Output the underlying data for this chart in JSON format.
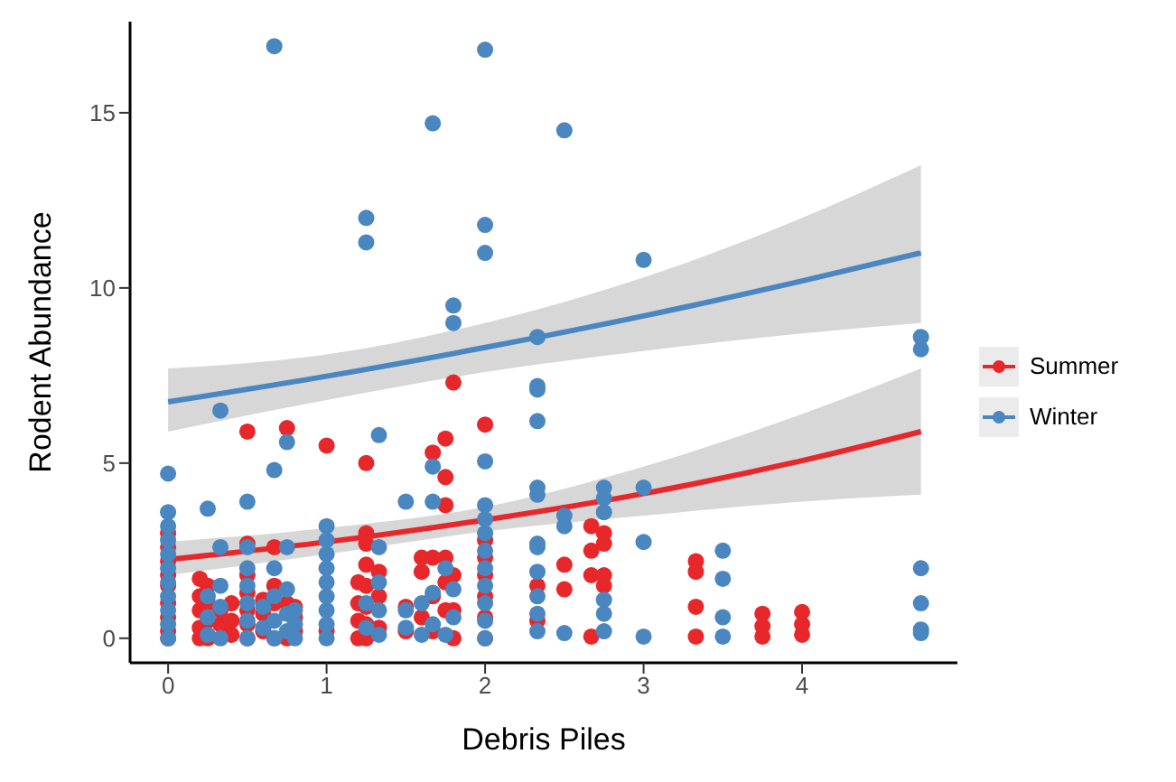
{
  "chart_data": {
    "type": "scatter",
    "xlabel": "Debris Piles",
    "ylabel": "Rodent Abundance",
    "xlim": [
      -0.24,
      4.98
    ],
    "ylim": [
      -0.7,
      17.6
    ],
    "xticks": [
      0,
      1,
      2,
      3,
      4
    ],
    "yticks": [
      0,
      5,
      10,
      15
    ],
    "grid": false,
    "legend": "right",
    "marker": "circle",
    "series": [
      {
        "name": "Summer",
        "color": "#e8272b",
        "x": [
          0,
          0,
          0,
          0,
          0,
          0,
          0,
          0,
          0,
          0.2,
          0.2,
          0.2,
          0.2,
          0.2,
          0.25,
          0.25,
          0.25,
          0.25,
          0.33,
          0.33,
          0.4,
          0.4,
          0.4,
          0.5,
          0.5,
          0.5,
          0.5,
          0.5,
          0.5,
          0.5,
          0.6,
          0.6,
          0.6,
          0.67,
          0.67,
          0.67,
          0.67,
          0.75,
          0.75,
          0.75,
          0.8,
          0.8,
          0.8,
          1,
          1,
          1.2,
          1.2,
          1.2,
          1.2,
          1.25,
          1.25,
          1.25,
          1.25,
          1.25,
          1.25,
          1.25,
          1.25,
          1.33,
          1.33,
          1.33,
          1.5,
          1.5,
          1.6,
          1.6,
          1.6,
          1.67,
          1.67,
          1.67,
          1.67,
          1.75,
          1.75,
          1.75,
          1.75,
          1.75,
          1.75,
          1.8,
          1.8,
          1.8,
          1.8,
          2,
          2,
          2,
          2,
          2,
          2,
          2,
          2.33,
          2.33,
          2.5,
          2.5,
          2.67,
          2.67,
          2.67,
          2.67,
          2.75,
          2.75,
          2.75,
          2.75,
          3.33,
          3.33,
          3.33,
          3.33,
          3.75,
          3.75,
          3.75,
          4,
          4,
          4
        ],
        "values": [
          0,
          0.2,
          0.6,
          1,
          1.5,
          1.8,
          2.2,
          2.6,
          3,
          0,
          0.3,
          0.8,
          1.2,
          1.7,
          0,
          0.5,
          1,
          1.5,
          0.4,
          0.8,
          0.1,
          0.5,
          1,
          0,
          0.4,
          0.8,
          1.3,
          1.8,
          2.7,
          5.9,
          0.2,
          0.7,
          1.1,
          0,
          1,
          1.5,
          2.6,
          0,
          1,
          6,
          0.2,
          0.6,
          0.9,
          0.2,
          5.5,
          0,
          0.5,
          1,
          1.6,
          0,
          0.4,
          0.9,
          1.5,
          2.1,
          2.7,
          3,
          5,
          0.3,
          1.2,
          1.9,
          0.2,
          0.9,
          0.6,
          1.9,
          2.3,
          0.2,
          1.2,
          2.3,
          5.3,
          0.8,
          1.6,
          2.3,
          3.8,
          4.6,
          5.7,
          0,
          0.8,
          1.8,
          7.3,
          0,
          0.6,
          1.2,
          1.8,
          2.3,
          2.8,
          6.1,
          0.5,
          1.5,
          1.4,
          2.1,
          0.05,
          1.8,
          2.5,
          3.2,
          1.5,
          1.8,
          2.7,
          3,
          0.05,
          0.9,
          1.9,
          2.2,
          0.05,
          0.35,
          0.7,
          0.1,
          0.4,
          0.75
        ]
      },
      {
        "name": "Winter",
        "color": "#4a86c0",
        "x": [
          0,
          0,
          0,
          0,
          0,
          0,
          0,
          0,
          0,
          0,
          0,
          0.25,
          0.25,
          0.25,
          0.25,
          0.33,
          0.33,
          0.33,
          0.33,
          0.33,
          0.5,
          0.5,
          0.5,
          0.5,
          0.5,
          0.5,
          0.5,
          0.6,
          0.6,
          0.67,
          0.67,
          0.67,
          0.67,
          0.67,
          0.67,
          0.75,
          0.75,
          0.75,
          0.75,
          0.75,
          0.8,
          0.8,
          0.8,
          1,
          1,
          1,
          1,
          1,
          1,
          1,
          1,
          1,
          1.25,
          1.25,
          1.25,
          1.25,
          1.33,
          1.33,
          1.33,
          1.33,
          1.33,
          1.5,
          1.5,
          1.5,
          1.6,
          1.6,
          1.67,
          1.67,
          1.67,
          1.67,
          1.67,
          1.75,
          1.75,
          1.8,
          1.8,
          1.8,
          1.8,
          2,
          2,
          2,
          2,
          2,
          2,
          2,
          2,
          2,
          2,
          2,
          2,
          2,
          2.33,
          2.33,
          2.33,
          2.33,
          2.33,
          2.33,
          2.33,
          2.33,
          2.33,
          2.33,
          2.33,
          2.33,
          2.5,
          2.5,
          2.5,
          2.5,
          2.75,
          2.75,
          2.75,
          2.75,
          2.75,
          2.75,
          3,
          3,
          3,
          3,
          3.5,
          3.5,
          3.5,
          3.5,
          4.75,
          4.75,
          4.75,
          4.75,
          4.75,
          4.75
        ],
        "values": [
          0,
          0.4,
          0.8,
          1.2,
          1.6,
          2,
          2.4,
          2.8,
          3.2,
          3.6,
          4.7,
          0.1,
          0.6,
          1.2,
          3.7,
          0,
          0.9,
          1.5,
          2.6,
          6.5,
          0,
          0.5,
          1,
          1.5,
          2,
          2.6,
          3.9,
          0.3,
          0.9,
          0,
          0.5,
          1.2,
          2,
          4.8,
          16.9,
          0.2,
          0.7,
          1.4,
          2.6,
          5.6,
          0,
          0.4,
          0.8,
          0,
          0.4,
          0.8,
          1.2,
          1.6,
          2,
          2.4,
          2.8,
          3.2,
          0.3,
          1,
          12,
          11.3,
          0.1,
          0.8,
          1.6,
          2.6,
          5.8,
          0.3,
          0.8,
          3.9,
          0.1,
          1,
          0.4,
          1.3,
          3.9,
          4.9,
          14.7,
          0.1,
          2,
          0.6,
          1.4,
          9.5,
          9,
          0,
          0.5,
          1,
          1.5,
          2,
          2.5,
          3,
          3.4,
          3.8,
          5.05,
          11,
          11.8,
          16.8,
          0.2,
          0.7,
          1.2,
          1.9,
          2.6,
          2.7,
          4.1,
          4.3,
          6.2,
          7.1,
          7.2,
          8.6,
          0.15,
          3.2,
          3.5,
          14.5,
          0.2,
          0.7,
          1.1,
          3.6,
          4,
          4.3,
          0.05,
          2.75,
          4.3,
          10.8,
          0.05,
          0.6,
          1.7,
          2.5,
          0.15,
          0.25,
          1,
          2,
          8.25,
          8.6
        ]
      },
      {
        "type": "line",
        "marker": "none",
        "color": "#e8272b",
        "x": [
          0,
          1,
          2,
          3,
          4,
          4.75
        ],
        "values": [
          2.25,
          2.75,
          3.38,
          4.13,
          5.07,
          5.9
        ],
        "lower": [
          1.8,
          2.4,
          3.05,
          3.5,
          3.9,
          4.1
        ],
        "upper": [
          2.75,
          3.15,
          3.75,
          4.9,
          6.4,
          7.7
        ]
      },
      {
        "type": "line",
        "marker": "none",
        "color": "#4a86c0",
        "x": [
          0,
          1,
          2,
          3,
          4,
          4.75
        ],
        "values": [
          6.75,
          7.48,
          8.3,
          9.2,
          10.2,
          11
        ],
        "lower": [
          5.9,
          6.8,
          7.6,
          8.2,
          8.7,
          9
        ],
        "upper": [
          7.7,
          8.1,
          9,
          10.3,
          12,
          13.5
        ]
      }
    ]
  }
}
